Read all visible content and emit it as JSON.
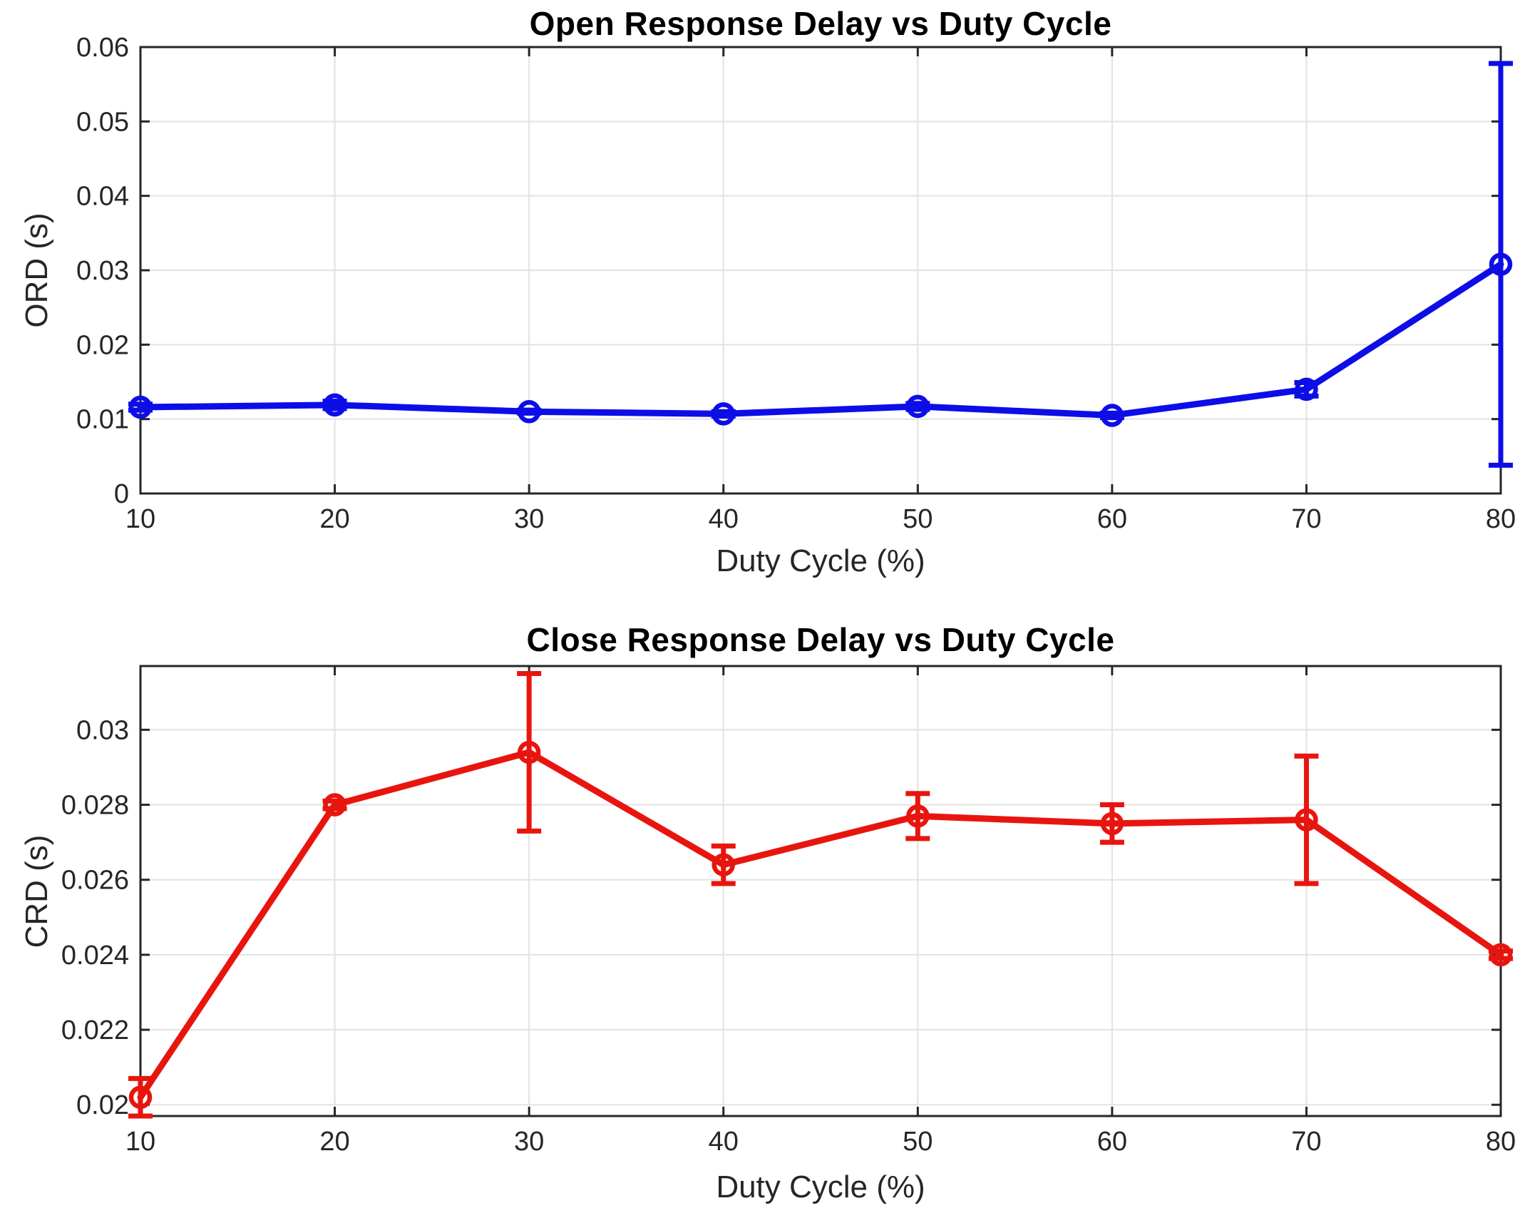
{
  "figure": {
    "background_color": "#ffffff",
    "axis_color": "#262626",
    "grid_color": "#e2e2e2",
    "tick_label_color": "#262626"
  },
  "chart_data": [
    {
      "type": "line",
      "series_name": "ORD",
      "title": "Open Response Delay vs Duty Cycle",
      "xlabel": "Duty Cycle (%)",
      "ylabel": "ORD (s)",
      "line_color": "#0d0de8",
      "marker": "o",
      "grid": true,
      "legend": "none",
      "x": [
        10,
        20,
        30,
        40,
        50,
        60,
        70,
        80
      ],
      "y": [
        0.0116,
        0.0119,
        0.011,
        0.0107,
        0.0117,
        0.0105,
        0.014,
        0.0308
      ],
      "yerr": [
        0.0004,
        0.0005,
        0.0002,
        0.0003,
        0.0004,
        0.0003,
        0.0009,
        0.027
      ],
      "xlim": [
        10,
        80
      ],
      "ylim": [
        0,
        0.06
      ],
      "xticks": [
        10,
        20,
        30,
        40,
        50,
        60,
        70,
        80
      ],
      "xtick_labels": [
        "10",
        "20",
        "30",
        "40",
        "50",
        "60",
        "70",
        "80"
      ],
      "yticks": [
        0,
        0.01,
        0.02,
        0.03,
        0.04,
        0.05,
        0.06
      ],
      "ytick_labels": [
        "0",
        "0.01",
        "0.02",
        "0.03",
        "0.04",
        "0.05",
        "0.06"
      ]
    },
    {
      "type": "line",
      "series_name": "CRD",
      "title": "Close Response Delay vs Duty Cycle",
      "xlabel": "Duty Cycle (%)",
      "ylabel": "CRD (s)",
      "line_color": "#e8150f",
      "marker": "o",
      "grid": true,
      "legend": "none",
      "x": [
        10,
        20,
        30,
        40,
        50,
        60,
        70,
        80
      ],
      "y": [
        0.0202,
        0.028,
        0.0294,
        0.0264,
        0.0277,
        0.0275,
        0.0276,
        0.024
      ],
      "yerr": [
        0.0005,
        0.0001,
        0.0021,
        0.0005,
        0.0006,
        0.0005,
        0.0017,
        0.0001
      ],
      "xlim": [
        10,
        80
      ],
      "ylim": [
        0.0197,
        0.0317
      ],
      "xticks": [
        10,
        20,
        30,
        40,
        50,
        60,
        70,
        80
      ],
      "xtick_labels": [
        "10",
        "20",
        "30",
        "40",
        "50",
        "60",
        "70",
        "80"
      ],
      "yticks": [
        0.02,
        0.022,
        0.024,
        0.026,
        0.028,
        0.03
      ],
      "ytick_labels": [
        "0.02",
        "0.022",
        "0.024",
        "0.026",
        "0.028",
        "0.03"
      ]
    }
  ]
}
